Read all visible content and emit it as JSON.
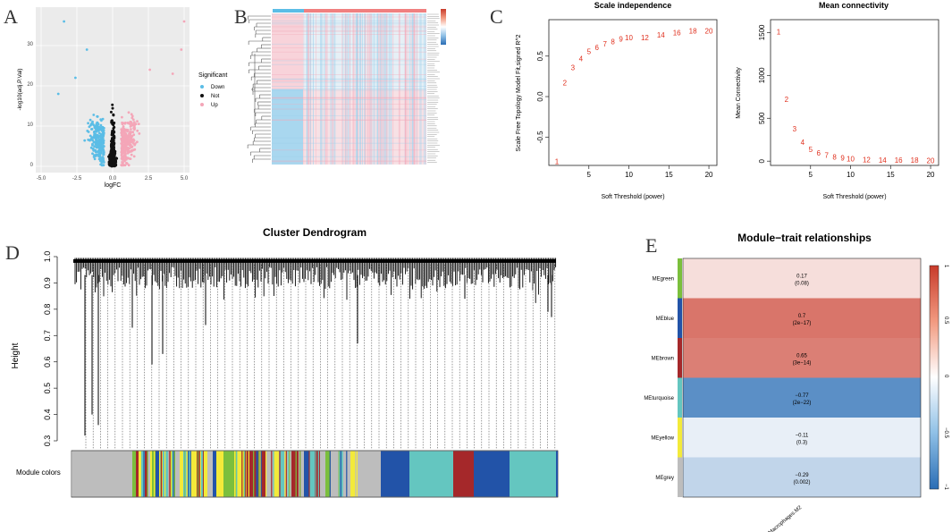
{
  "panels": {
    "A": {
      "letter": "A"
    },
    "B": {
      "letter": "B"
    },
    "C": {
      "letter": "C"
    },
    "D": {
      "letter": "D"
    },
    "E": {
      "letter": "E"
    }
  },
  "volcano": {
    "xlabel": "logFC",
    "ylabel": "-log10(adj.P.Val)",
    "legend_title": "Significant",
    "legend": [
      {
        "label": "Down",
        "color": "#5bbde6"
      },
      {
        "label": "Not",
        "color": "#111111"
      },
      {
        "label": "Up",
        "color": "#f4a6b8"
      }
    ],
    "xticks": [
      "-5.0",
      "-2.5",
      "0.0",
      "2.5",
      "5.0"
    ],
    "yticks": [
      "0",
      "10",
      "20",
      "30"
    ]
  },
  "chart_data": [
    {
      "type": "line",
      "title": "Scale independence",
      "xlabel": "Soft Threshold (power)",
      "ylabel": "Scale Free Topology Model Fit,signed R^2",
      "x": [
        1,
        2,
        3,
        4,
        5,
        6,
        7,
        8,
        9,
        10,
        12,
        14,
        16,
        18,
        20
      ],
      "y": [
        -0.8,
        0.17,
        0.36,
        0.47,
        0.56,
        0.61,
        0.65,
        0.68,
        0.71,
        0.73,
        0.73,
        0.76,
        0.79,
        0.81,
        0.81
      ],
      "xlim": [
        0,
        21
      ],
      "ylim": [
        -0.85,
        0.95
      ],
      "xticks": [
        "5",
        "10",
        "15",
        "20"
      ],
      "yticks": [
        "-0.5",
        "0.0",
        "0.5"
      ]
    },
    {
      "type": "line",
      "title": "Mean connectivity",
      "xlabel": "Soft Threshold (power)",
      "ylabel": "Mean Connectivity",
      "x": [
        1,
        2,
        3,
        4,
        5,
        6,
        7,
        8,
        9,
        10,
        12,
        14,
        16,
        18,
        20
      ],
      "y": [
        1510,
        720,
        380,
        220,
        140,
        95,
        70,
        50,
        40,
        30,
        20,
        15,
        12,
        10,
        8
      ],
      "xlim": [
        0,
        21
      ],
      "ylim": [
        -50,
        1650
      ],
      "xticks": [
        "5",
        "10",
        "15",
        "20"
      ],
      "yticks": [
        "0",
        "500",
        "1000",
        "1500"
      ]
    },
    {
      "type": "heatmap",
      "title": "Module−trait relationships",
      "xlabel": "Macrophages.M2",
      "rows": [
        {
          "module": "MEgreen",
          "value": "0.17",
          "p": "(0.08)",
          "r": 0.17,
          "color": "#7bbf3c"
        },
        {
          "module": "MEblue",
          "value": "0.7",
          "p": "(2e−17)",
          "r": 0.7,
          "color": "#2253a8"
        },
        {
          "module": "MEbrown",
          "value": "0.65",
          "p": "(3e−14)",
          "r": 0.65,
          "color": "#a5282a"
        },
        {
          "module": "MEturquoise",
          "value": "−0.77",
          "p": "(2e−22)",
          "r": -0.77,
          "color": "#64c6c0"
        },
        {
          "module": "MEyellow",
          "value": "−0.11",
          "p": "(0.3)",
          "r": -0.11,
          "color": "#f3ea3a"
        },
        {
          "module": "MEgrey",
          "value": "−0.29",
          "p": "(0.002)",
          "r": -0.29,
          "color": "#bdbdbd"
        }
      ],
      "colorbar_ticks": [
        "1",
        "0.5",
        "0",
        "−0.5",
        "−1"
      ]
    }
  ],
  "dendrogram": {
    "title": "Cluster Dendrogram",
    "ylabel": "Height",
    "yticks": [
      "1.0",
      "0.9",
      "0.8",
      "0.7",
      "0.6",
      "0.5",
      "0.4",
      "0.3"
    ],
    "module_label": "Module colors"
  }
}
